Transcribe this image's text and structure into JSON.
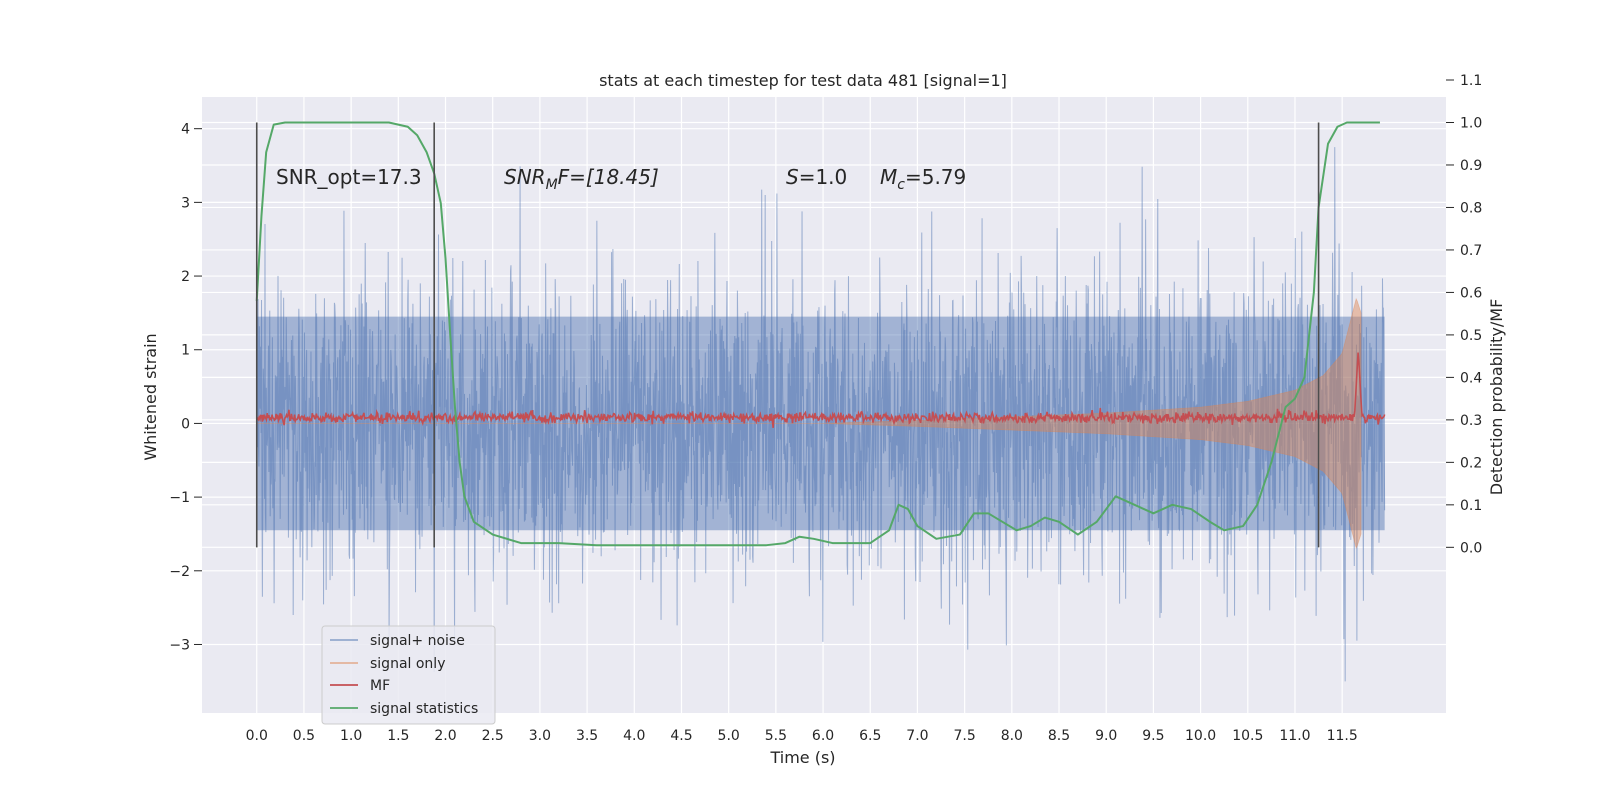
{
  "chart_data": {
    "type": "line",
    "title": "stats at each timestep for test data 481 [signal=1]",
    "xlabel": "Time (s)",
    "ylabel": "Whitened strain",
    "ylabel_right": "Detection probability/MF",
    "xlim": [
      -0.58,
      12.6
    ],
    "ylim": [
      -3.93,
      4.43
    ],
    "ylim_right": [
      -0.39,
      1.06
    ],
    "x_ticks": [
      "0.0",
      "0.5",
      "1.0",
      "1.5",
      "2.0",
      "2.5",
      "3.0",
      "3.5",
      "4.0",
      "4.5",
      "5.0",
      "5.5",
      "6.0",
      "6.5",
      "7.0",
      "7.5",
      "8.0",
      "8.5",
      "9.0",
      "9.5",
      "10.0",
      "10.5",
      "11.0",
      "11.5"
    ],
    "y_ticks": [
      "4",
      "3",
      "2",
      "1",
      "0",
      "−1",
      "−2",
      "−3"
    ],
    "y_ticks_right": [
      "1.1",
      "1.0",
      "0.9",
      "0.8",
      "0.7",
      "0.6",
      "0.5",
      "0.4",
      "0.3",
      "0.2",
      "0.1",
      "0.0"
    ],
    "grid": true,
    "legend_position": "lower-left",
    "colors": {
      "background": "#eaeaf2",
      "signal_noise": "#4c72b0",
      "signal_only": "#dd8452",
      "mf": "#c44e52",
      "signal_statistics": "#55a868",
      "vline": "#4d4d4d"
    },
    "annotations": {
      "snr_opt": "SNR_opt=17.3",
      "snr_mf_base": "SNR",
      "snr_mf_sub": "M",
      "snr_mf_tail": "F=[18.45]",
      "s_main": "S",
      "s_tail": "=1.0",
      "mc_main": "M",
      "mc_sub": "c",
      "mc_tail": "=5.79"
    },
    "vertical_lines_x": [
      0.0,
      1.88,
      11.25
    ],
    "series": [
      {
        "name": "signal+ noise",
        "description_values": "whitened noisy strain, approx. ±1.5 typical, spikes to 4.1 and −3.5",
        "x_range": [
          0.0,
          11.95
        ],
        "sigma": 1.0
      },
      {
        "name": "signal only",
        "x": [
          0.0,
          6.0,
          7.0,
          8.0,
          9.0,
          10.0,
          10.5,
          11.0,
          11.3,
          11.5,
          11.65,
          11.7
        ],
        "envelope": [
          0.0,
          0.0,
          0.04,
          0.09,
          0.14,
          0.22,
          0.3,
          0.45,
          0.65,
          0.95,
          1.7,
          1.5
        ]
      },
      {
        "name": "MF",
        "x_range": [
          0.0,
          11.95
        ],
        "baseline": 0.08,
        "peak": {
          "x": 11.67,
          "y": 1.0
        }
      },
      {
        "name": "signal statistics",
        "axis": "right",
        "x": [
          0.0,
          0.05,
          0.1,
          0.18,
          0.3,
          0.6,
          1.0,
          1.4,
          1.6,
          1.7,
          1.8,
          1.88,
          1.95,
          2.0,
          2.05,
          2.1,
          2.15,
          2.2,
          2.3,
          2.5,
          2.8,
          3.2,
          3.6,
          4.0,
          4.5,
          5.0,
          5.4,
          5.6,
          5.75,
          5.9,
          6.1,
          6.5,
          6.7,
          6.8,
          6.9,
          7.0,
          7.2,
          7.45,
          7.6,
          7.75,
          7.9,
          8.05,
          8.2,
          8.35,
          8.5,
          8.7,
          8.9,
          9.1,
          9.3,
          9.5,
          9.7,
          9.9,
          10.1,
          10.25,
          10.45,
          10.6,
          10.75,
          10.9,
          11.0,
          11.1,
          11.2,
          11.25,
          11.35,
          11.45,
          11.55,
          11.65,
          11.75,
          11.9
        ],
        "values": [
          0.58,
          0.78,
          0.93,
          0.995,
          1.0,
          1.0,
          1.0,
          1.0,
          0.99,
          0.97,
          0.93,
          0.88,
          0.81,
          0.68,
          0.5,
          0.33,
          0.2,
          0.12,
          0.06,
          0.03,
          0.01,
          0.01,
          0.005,
          0.005,
          0.005,
          0.005,
          0.005,
          0.01,
          0.025,
          0.02,
          0.01,
          0.01,
          0.04,
          0.1,
          0.09,
          0.05,
          0.02,
          0.03,
          0.08,
          0.08,
          0.06,
          0.04,
          0.05,
          0.07,
          0.06,
          0.03,
          0.06,
          0.12,
          0.1,
          0.08,
          0.1,
          0.09,
          0.06,
          0.04,
          0.05,
          0.1,
          0.2,
          0.33,
          0.35,
          0.4,
          0.6,
          0.8,
          0.95,
          0.99,
          1.0,
          1.0,
          1.0,
          1.0
        ]
      }
    ]
  }
}
